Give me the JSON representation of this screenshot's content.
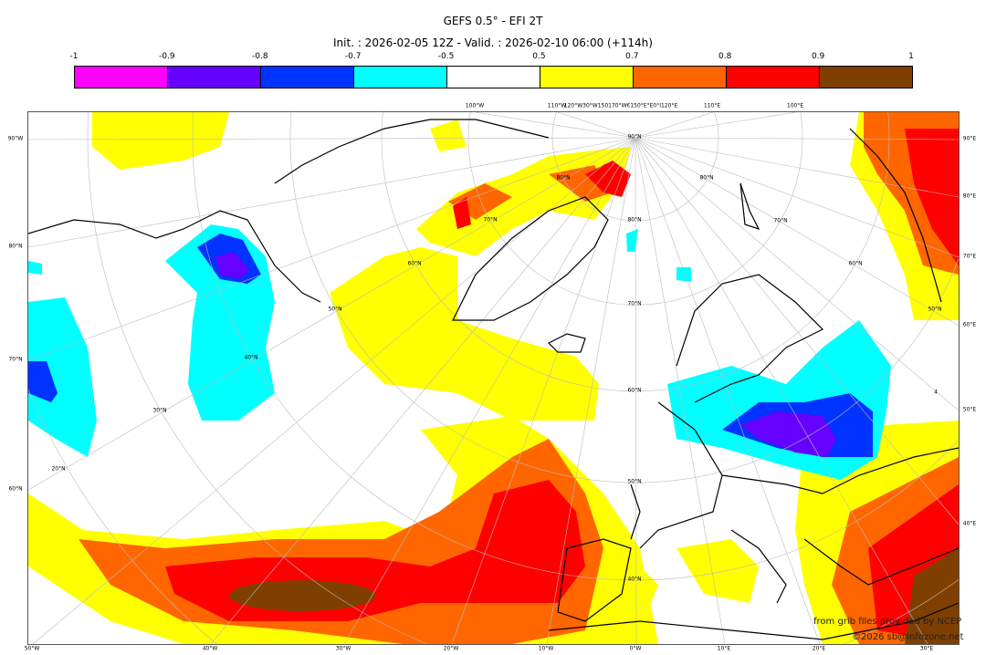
{
  "header": {
    "title": "GEFS 0.5° - EFI 2T",
    "subtitle": "Init. : 2026-02-05 12Z - Valid. : 2026-02-10 06:00 (+114h)"
  },
  "colorbar": {
    "ticks": [
      "-1",
      "-0.9",
      "-0.8",
      "-0.7",
      "-0.5",
      "0.5",
      "0.7",
      "0.8",
      "0.9",
      "1"
    ],
    "colors": [
      "#ff00ff",
      "#6600ff",
      "#0033ff",
      "#00ffff",
      "#ffffff",
      "#ffff00",
      "#ff6600",
      "#ff0000",
      "#7f3f00"
    ]
  },
  "axes": {
    "top": [
      "100°W",
      "110°W",
      "120°W30°W150170°W€150°E°E0°I120°E",
      "110°E",
      "100°E"
    ],
    "bottom": [
      "50°W",
      "40°W",
      "30°W",
      "20°W",
      "10°W",
      "0°W",
      "10°E",
      "20°E",
      "30°E"
    ],
    "left": [
      "90°W",
      "80°N",
      "70°N",
      "60°N"
    ],
    "right": [
      "90°E",
      "80°E",
      "70°E",
      "60°E",
      "50°E",
      "40°E"
    ]
  },
  "grid_labels": [
    "90°N",
    "80°N",
    "70°N",
    "60°N",
    "50°N",
    "40°N",
    "30°N",
    "20°N",
    "80°N",
    "70°N",
    "60°N",
    "50°N",
    "70°N",
    "60°N",
    "50°N",
    "40°N",
    "80°N",
    "4"
  ],
  "credits": {
    "source": "from grib files provided by NCEP",
    "copyright": "©2026 sb@infozone.net"
  }
}
